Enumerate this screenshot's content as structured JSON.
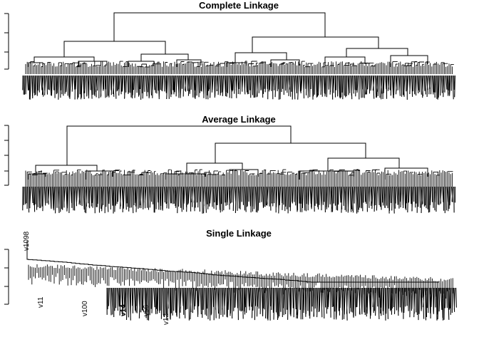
{
  "panels": [
    {
      "id": "complete",
      "title": "Complete Linkage",
      "top_split": 0.48
    },
    {
      "id": "average",
      "title": "Average Linkage",
      "top_split": 0.44
    },
    {
      "id": "single",
      "title": "Single Linkage",
      "visible_leaf_labels": [
        "v1098",
        "v11",
        "v100",
        "v14",
        "v56",
        "v12"
      ]
    }
  ]
}
